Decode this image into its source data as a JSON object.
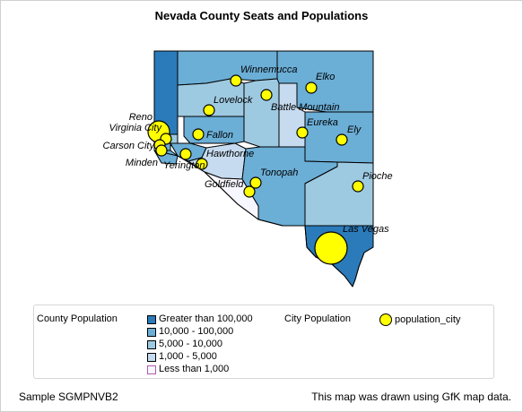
{
  "title": "Nevada County Seats and Populations",
  "colors": {
    "class_1": "#2b7bba",
    "class_2": "#6baed6",
    "class_3": "#9ecae1",
    "class_4": "#c6dbef",
    "class_5": "#f7f7ff",
    "bubble": "#ffff00",
    "border": "#000000"
  },
  "legend": {
    "county_title": "County Population",
    "county_classes": [
      {
        "label": "Greater than 100,000"
      },
      {
        "label": "10,000 - 100,000"
      },
      {
        "label": "5,000 - 10,000"
      },
      {
        "label": "1,000 - 5,000"
      },
      {
        "label": "Less than 1,000"
      }
    ],
    "city_title": "City Population",
    "city_symbol_label": "population_city"
  },
  "footer": {
    "left": "Sample SGMPNVB2",
    "right": "This map was drawn using GfK map data."
  },
  "cities": [
    {
      "name": "Winnemucca",
      "size": "small"
    },
    {
      "name": "Elko",
      "size": "small"
    },
    {
      "name": "Lovelock",
      "size": "small"
    },
    {
      "name": "Battle Mountain",
      "size": "small"
    },
    {
      "name": "Reno",
      "size": "large"
    },
    {
      "name": "Virginia City",
      "size": "small"
    },
    {
      "name": "Carson City",
      "size": "small"
    },
    {
      "name": "Minden",
      "size": "small"
    },
    {
      "name": "Fallon",
      "size": "small"
    },
    {
      "name": "Eureka",
      "size": "small"
    },
    {
      "name": "Ely",
      "size": "small"
    },
    {
      "name": "Yerington",
      "size": "small"
    },
    {
      "name": "Hawthorne",
      "size": "small"
    },
    {
      "name": "Tonopah",
      "size": "small"
    },
    {
      "name": "Goldfield",
      "size": "small"
    },
    {
      "name": "Pioche",
      "size": "small"
    },
    {
      "name": "Las Vegas",
      "size": "largest"
    }
  ]
}
